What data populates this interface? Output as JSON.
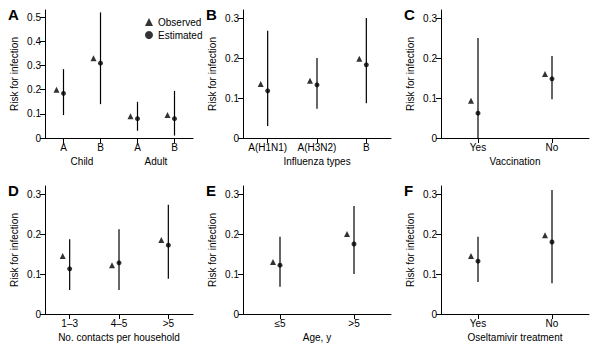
{
  "chart_data": [
    {
      "type": "scatter",
      "title": "A",
      "y_label": "Risk for infection",
      "categories": [
        "A",
        "B",
        "A",
        "B"
      ],
      "x_groups": [
        "Child",
        "Adult"
      ],
      "ylim": [
        0,
        0.53
      ],
      "yticks": [
        0,
        0.1,
        0.2,
        0.3,
        0.4,
        0.5
      ],
      "legend": "upper right",
      "series": [
        {
          "name": "Observed",
          "marker": "triangle",
          "color": "#000000",
          "values": [
            0.2,
            0.33,
            0.09,
            0.095
          ]
        },
        {
          "name": "Estimated",
          "marker": "circle",
          "color": "#000000",
          "values": [
            0.185,
            0.31,
            0.08,
            0.08
          ],
          "error_low": [
            0.095,
            0.14,
            0.03,
            0.01
          ],
          "error_high": [
            0.285,
            0.52,
            0.15,
            0.195
          ]
        }
      ]
    },
    {
      "type": "scatter",
      "title": "B",
      "y_label": "Risk for infection",
      "x_label": "Influenza types",
      "categories": [
        "A(H1N1)",
        "A(H3N2)",
        "B"
      ],
      "ylim": [
        0,
        0.32
      ],
      "yticks": [
        0,
        0.1,
        0.2,
        0.3
      ],
      "series": [
        {
          "marker": "triangle",
          "color": "#000000",
          "values": [
            0.135,
            0.143,
            0.198
          ]
        },
        {
          "marker": "circle",
          "color": "#000000",
          "values": [
            0.118,
            0.133,
            0.183
          ],
          "error_low": [
            0.03,
            0.073,
            0.087
          ],
          "error_high": [
            0.268,
            0.2,
            0.3
          ]
        }
      ]
    },
    {
      "type": "scatter",
      "title": "C",
      "y_label": "Risk for infection",
      "x_label": "Vaccination",
      "categories": [
        "Yes",
        "No"
      ],
      "ylim": [
        0,
        0.32
      ],
      "yticks": [
        0,
        0.1,
        0.2,
        0.3
      ],
      "series": [
        {
          "marker": "triangle",
          "color": "#000000",
          "values": [
            0.093,
            0.16
          ]
        },
        {
          "marker": "circle",
          "color": "#000000",
          "values": [
            0.062,
            0.148
          ],
          "error_low": [
            0,
            0.097
          ],
          "error_high": [
            0.25,
            0.205
          ]
        }
      ]
    },
    {
      "type": "scatter",
      "title": "D",
      "y_label": "Risk for infection",
      "x_label": "No. contacts per household",
      "categories": [
        "1–3",
        "4–5",
        ">5"
      ],
      "ylim": [
        0,
        0.32
      ],
      "yticks": [
        0,
        0.1,
        0.2,
        0.3
      ],
      "series": [
        {
          "marker": "triangle",
          "color": "#000000",
          "values": [
            0.145,
            0.122,
            0.185
          ]
        },
        {
          "marker": "circle",
          "color": "#000000",
          "values": [
            0.113,
            0.128,
            0.172
          ],
          "error_low": [
            0.06,
            0.06,
            0.088
          ],
          "error_high": [
            0.187,
            0.212,
            0.273
          ]
        }
      ]
    },
    {
      "type": "scatter",
      "title": "E",
      "y_label": "Risk for infection",
      "x_label": "Age, y",
      "categories": [
        "≤5",
        ">5"
      ],
      "ylim": [
        0,
        0.32
      ],
      "yticks": [
        0,
        0.1,
        0.2,
        0.3
      ],
      "series": [
        {
          "marker": "triangle",
          "color": "#000000",
          "values": [
            0.13,
            0.2
          ]
        },
        {
          "marker": "circle",
          "color": "#000000",
          "values": [
            0.122,
            0.175
          ],
          "error_low": [
            0.068,
            0.1
          ],
          "error_high": [
            0.193,
            0.27
          ]
        }
      ]
    },
    {
      "type": "scatter",
      "title": "F",
      "y_label": "Risk for infection",
      "x_label": "Oseltamivir treatment",
      "categories": [
        "Yes",
        "No"
      ],
      "ylim": [
        0,
        0.32
      ],
      "yticks": [
        0,
        0.1,
        0.2,
        0.3
      ],
      "series": [
        {
          "marker": "triangle",
          "color": "#000000",
          "values": [
            0.145,
            0.197
          ]
        },
        {
          "marker": "circle",
          "color": "#000000",
          "values": [
            0.132,
            0.18
          ],
          "error_low": [
            0.08,
            0.077
          ],
          "error_high": [
            0.193,
            0.31
          ]
        }
      ]
    }
  ]
}
